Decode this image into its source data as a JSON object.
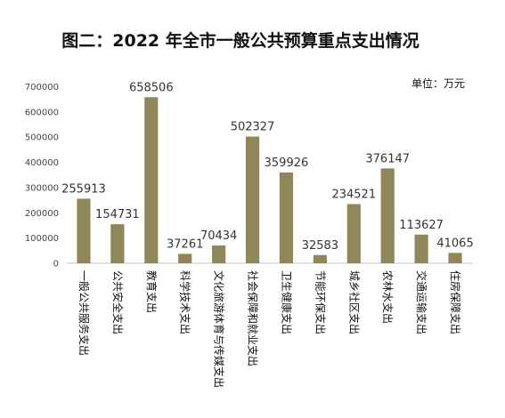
{
  "chart_data": {
    "type": "bar",
    "title": "图二：2022 年全市一般公共预算重点支出情况",
    "unit_label": "单位：万元",
    "categories": [
      "一般公共服务支出",
      "公共安全支出",
      "教育支出",
      "科学技术支出",
      "文化旅游体育与传媒支出",
      "社会保障和就业支出",
      "卫生健康支出",
      "节能环保支出",
      "城乡社区支出",
      "农林水支出",
      "交通运输支出",
      "住房保障支出"
    ],
    "values": [
      255913,
      154731,
      658506,
      37261,
      70434,
      502327,
      359926,
      32583,
      234521,
      376147,
      113627,
      41065
    ],
    "value_labels": [
      "255913",
      "154731",
      "658506",
      "37261",
      "70434",
      "502327",
      "359926",
      "32583",
      "234521",
      "376147",
      "113627",
      "41065"
    ],
    "yticks": [
      0,
      100000,
      200000,
      300000,
      400000,
      500000,
      600000,
      700000
    ],
    "ytick_labels": [
      "0",
      "100000",
      "200000",
      "300000",
      "400000",
      "500000",
      "600000",
      "700000"
    ],
    "ylim": [
      0,
      700000
    ],
    "grid": false,
    "legend": "none",
    "bar_color": "#8f8659"
  }
}
